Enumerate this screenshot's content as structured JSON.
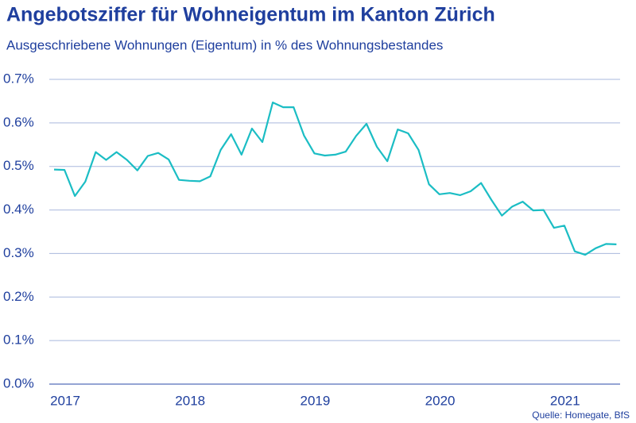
{
  "chart_data": {
    "type": "line",
    "title": "Angebotsziffer für Wohneigentum im Kanton Zürich",
    "subtitle": "Ausgeschriebene Wohnungen (Eigentum) in  % des Wohnungsbestandes",
    "source": "Quelle: Homegate, BfS",
    "categories": [
      "2017",
      null,
      null,
      null,
      null,
      null,
      null,
      null,
      null,
      null,
      null,
      null,
      "2018",
      null,
      null,
      null,
      null,
      null,
      null,
      null,
      null,
      null,
      null,
      null,
      "2019",
      null,
      null,
      null,
      null,
      null,
      null,
      null,
      null,
      null,
      null,
      null,
      "2020",
      null,
      null,
      null,
      null,
      null,
      null,
      null,
      null,
      null,
      null,
      null,
      "2021",
      null,
      null,
      null,
      null,
      null,
      null
    ],
    "series": [
      {
        "color": "#1bbdc4",
        "values": [
          0.493,
          0.492,
          0.432,
          0.465,
          0.533,
          0.515,
          0.533,
          0.515,
          0.491,
          0.524,
          0.531,
          0.516,
          0.469,
          0.467,
          0.466,
          0.477,
          0.538,
          0.574,
          0.527,
          0.587,
          0.556,
          0.647,
          0.636,
          0.636,
          0.571,
          0.53,
          0.525,
          0.527,
          0.534,
          0.57,
          0.598,
          0.545,
          0.512,
          0.585,
          0.576,
          0.538,
          0.459,
          0.436,
          0.439,
          0.434,
          0.443,
          0.462,
          0.423,
          0.387,
          0.408,
          0.419,
          0.399,
          0.4,
          0.359,
          0.364,
          0.305,
          0.297,
          0.312,
          0.322,
          0.321
        ]
      }
    ],
    "ylim": [
      0,
      0.7
    ],
    "yticks": [
      {
        "value": 0,
        "label": "0.0%"
      },
      {
        "value": 0.1,
        "label": "0.1%"
      },
      {
        "value": 0.2,
        "label": "0.2%"
      },
      {
        "value": 0.3,
        "label": "0.3%"
      },
      {
        "value": 0.4,
        "label": "0.4%"
      },
      {
        "value": 0.5,
        "label": "0.5%"
      },
      {
        "value": 0.6,
        "label": "0.6%"
      },
      {
        "value": 0.7,
        "label": "0.7%"
      }
    ],
    "grid": true
  }
}
